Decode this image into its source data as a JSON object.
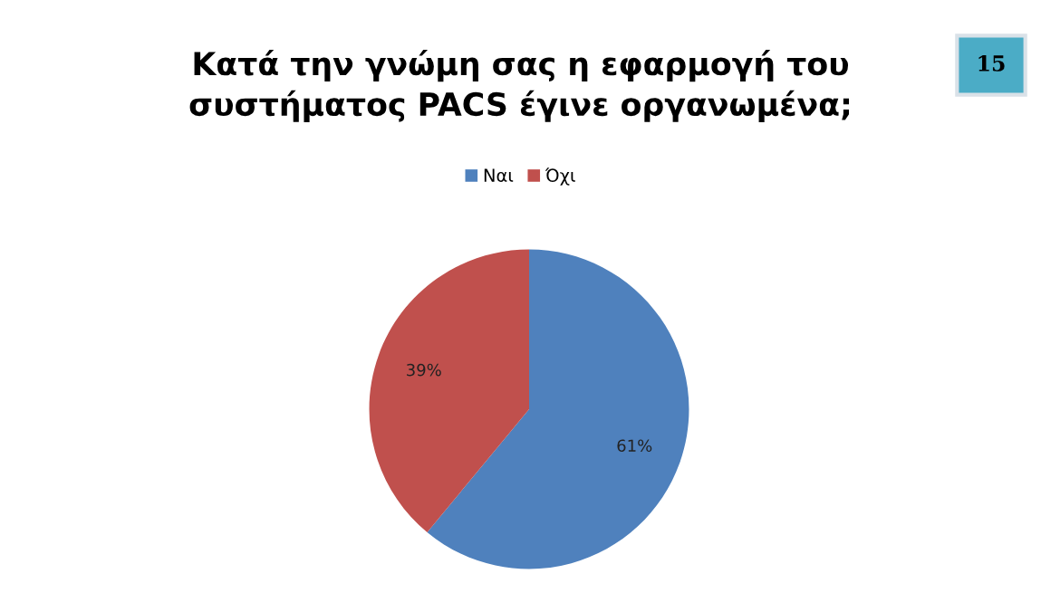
{
  "chart_data": {
    "type": "pie",
    "title": "Κατά την γνώμη σας η εφαρμογή του\nσυστήματος PACS έγινε οργανωμένα;",
    "categories": [
      "Ναι",
      "Όχι"
    ],
    "values": [
      61,
      39
    ],
    "colors": [
      "#4f81bd",
      "#c0504d"
    ],
    "value_labels": [
      "61%",
      "39%"
    ],
    "legend": "top",
    "annotations": [
      "15"
    ]
  }
}
